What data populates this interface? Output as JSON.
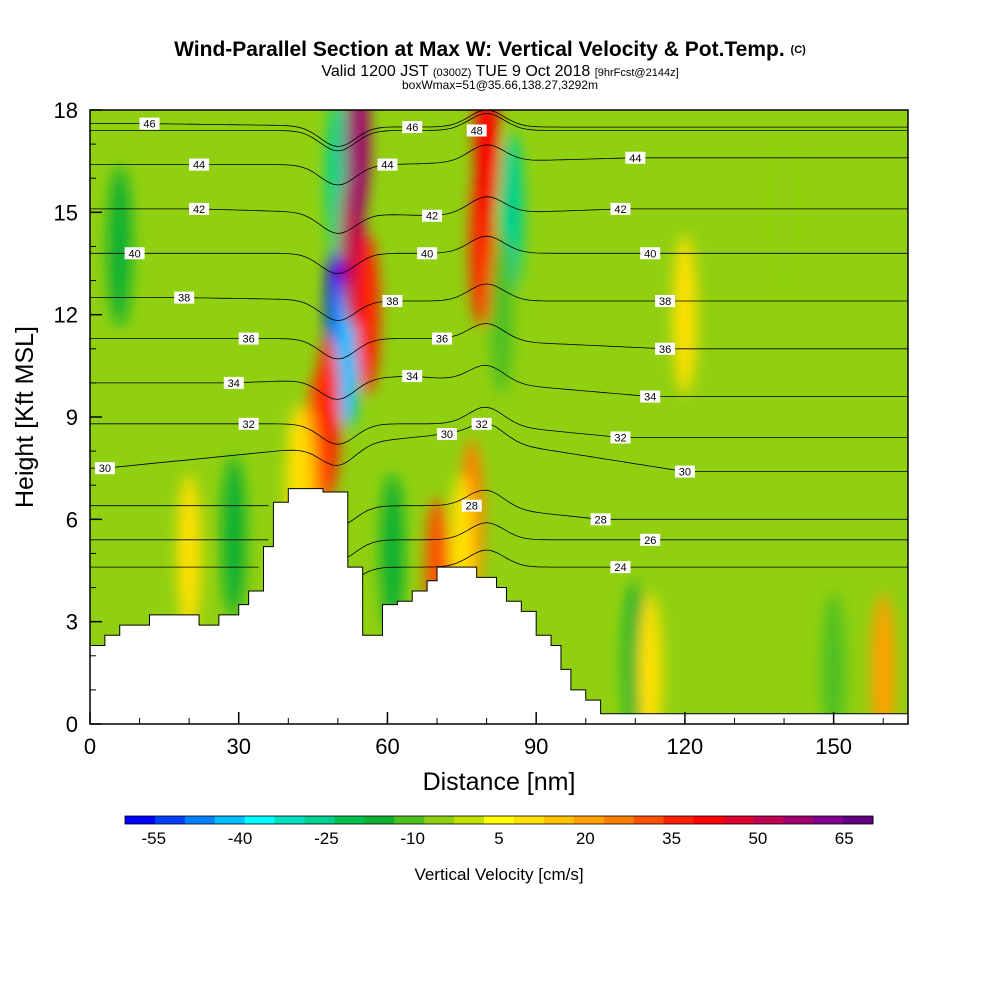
{
  "chart_data": {
    "type": "heatmap",
    "title": {
      "main": "Wind-Parallel Section at Max W: Vertical Velocity & Pot.Temp.",
      "copyright": "(C)",
      "valid_prefix": "Valid 1200 JST",
      "valid_utc": "(0300Z)",
      "valid_date": "TUE 9 Oct 2018",
      "forecast": "[9hrFcst@2144z]",
      "boxinfo": "boxWmax=51@35.66,138.27,3292m"
    },
    "xlabel": "Distance [nm]",
    "ylabel": "Height [Kft MSL]",
    "xlim": [
      0,
      165
    ],
    "ylim": [
      0,
      18
    ],
    "xticks": [
      0,
      30,
      60,
      90,
      120,
      150
    ],
    "yticks": [
      0,
      3,
      6,
      9,
      12,
      15,
      18
    ],
    "colorbar": {
      "label": "Vertical Velocity [cm/s]",
      "tick_values": [
        -55,
        -40,
        -25,
        -10,
        5,
        20,
        35,
        50,
        65
      ],
      "range": [
        -60,
        70
      ],
      "colors": [
        "#0000ff",
        "#0040ff",
        "#0080ff",
        "#00bfff",
        "#00ffff",
        "#00e0c0",
        "#00d090",
        "#00c050",
        "#10b030",
        "#50c020",
        "#90d010",
        "#c0e000",
        "#ffff00",
        "#ffe000",
        "#ffc000",
        "#ffa000",
        "#ff8000",
        "#ff5000",
        "#ff2000",
        "#ff0000",
        "#e00030",
        "#c00050",
        "#a00070",
        "#800090",
        "#600080"
      ]
    },
    "terrain_profile": [
      [
        0,
        2.3
      ],
      [
        3,
        2.3
      ],
      [
        3,
        2.6
      ],
      [
        6,
        2.6
      ],
      [
        6,
        2.9
      ],
      [
        12,
        2.9
      ],
      [
        12,
        3.2
      ],
      [
        22,
        3.2
      ],
      [
        22,
        2.9
      ],
      [
        26,
        2.9
      ],
      [
        26,
        3.2
      ],
      [
        30,
        3.2
      ],
      [
        30,
        3.5
      ],
      [
        32,
        3.5
      ],
      [
        32,
        3.9
      ],
      [
        35,
        3.9
      ],
      [
        35,
        5.2
      ],
      [
        37,
        5.2
      ],
      [
        37,
        6.5
      ],
      [
        40,
        6.5
      ],
      [
        40,
        6.9
      ],
      [
        47,
        6.9
      ],
      [
        47,
        6.8
      ],
      [
        52,
        6.8
      ],
      [
        52,
        4.6
      ],
      [
        55,
        4.6
      ],
      [
        55,
        2.6
      ],
      [
        59,
        2.6
      ],
      [
        59,
        3.5
      ],
      [
        62,
        3.5
      ],
      [
        62,
        3.6
      ],
      [
        65,
        3.6
      ],
      [
        65,
        3.9
      ],
      [
        68,
        3.9
      ],
      [
        68,
        4.2
      ],
      [
        70,
        4.2
      ],
      [
        70,
        4.6
      ],
      [
        78,
        4.6
      ],
      [
        78,
        4.3
      ],
      [
        82,
        4.3
      ],
      [
        82,
        4.0
      ],
      [
        84,
        4.0
      ],
      [
        84,
        3.6
      ],
      [
        87,
        3.6
      ],
      [
        87,
        3.3
      ],
      [
        90,
        3.3
      ],
      [
        90,
        2.6
      ],
      [
        93,
        2.6
      ],
      [
        93,
        2.3
      ],
      [
        95,
        2.3
      ],
      [
        95,
        1.6
      ],
      [
        97,
        1.6
      ],
      [
        97,
        1.0
      ],
      [
        100,
        1.0
      ],
      [
        100,
        0.7
      ],
      [
        103,
        0.7
      ],
      [
        103,
        0.3
      ],
      [
        165,
        0.3
      ]
    ],
    "wind_cells": [
      {
        "x": 50,
        "y": 12,
        "v": -55
      },
      {
        "x": 50,
        "y": 16,
        "v": -25
      },
      {
        "x": 52,
        "y": 11,
        "v": -40
      },
      {
        "x": 53,
        "y": 14,
        "v": 50
      },
      {
        "x": 54,
        "y": 17,
        "v": 55
      },
      {
        "x": 56,
        "y": 12,
        "v": 35
      },
      {
        "x": 46,
        "y": 8,
        "v": 30
      },
      {
        "x": 48,
        "y": 9,
        "v": 35
      },
      {
        "x": 44,
        "y": 7,
        "v": 20
      },
      {
        "x": 79,
        "y": 14,
        "v": 35
      },
      {
        "x": 80,
        "y": 17,
        "v": 40
      },
      {
        "x": 85,
        "y": 15,
        "v": -25
      },
      {
        "x": 83,
        "y": 12,
        "v": -10
      },
      {
        "x": 77,
        "y": 6,
        "v": 25
      },
      {
        "x": 75,
        "y": 5,
        "v": 10
      },
      {
        "x": 70,
        "y": 4.3,
        "v": 30
      },
      {
        "x": 42,
        "y": 7,
        "v": 10
      },
      {
        "x": 20,
        "y": 5,
        "v": 10
      },
      {
        "x": 29,
        "y": 5.5,
        "v": -15
      },
      {
        "x": 61,
        "y": 5,
        "v": -15
      },
      {
        "x": 6,
        "y": 14,
        "v": -15
      },
      {
        "x": 140,
        "y": 15,
        "v": -5
      },
      {
        "x": 110,
        "y": 1.8,
        "v": -15
      },
      {
        "x": 113,
        "y": 1.5,
        "v": 10
      },
      {
        "x": 150,
        "y": 1.5,
        "v": -10
      },
      {
        "x": 120,
        "y": 12,
        "v": 10
      },
      {
        "x": 160,
        "y": 1.5,
        "v": 20
      }
    ],
    "theta_contours": [
      {
        "value": 24,
        "x": 107,
        "y": 4.6
      },
      {
        "value": 26,
        "x": 113,
        "y": 5.4
      },
      {
        "value": 28,
        "x": 77,
        "y": 6.4
      },
      {
        "value": 28,
        "x": 103,
        "y": 6.0
      },
      {
        "value": 30,
        "x": 3,
        "y": 7.5
      },
      {
        "value": 30,
        "x": 72,
        "y": 8.5
      },
      {
        "value": 30,
        "x": 120,
        "y": 7.4
      },
      {
        "value": 32,
        "x": 32,
        "y": 8.8
      },
      {
        "value": 32,
        "x": 79,
        "y": 8.8
      },
      {
        "value": 32,
        "x": 107,
        "y": 8.4
      },
      {
        "value": 34,
        "x": 29,
        "y": 10.0
      },
      {
        "value": 34,
        "x": 65,
        "y": 10.2
      },
      {
        "value": 34,
        "x": 113,
        "y": 9.6
      },
      {
        "value": 36,
        "x": 32,
        "y": 11.3
      },
      {
        "value": 36,
        "x": 71,
        "y": 11.3
      },
      {
        "value": 36,
        "x": 116,
        "y": 11.0
      },
      {
        "value": 38,
        "x": 19,
        "y": 12.5
      },
      {
        "value": 38,
        "x": 61,
        "y": 12.4
      },
      {
        "value": 38,
        "x": 116,
        "y": 12.4
      },
      {
        "value": 40,
        "x": 9,
        "y": 13.8
      },
      {
        "value": 40,
        "x": 68,
        "y": 13.8
      },
      {
        "value": 40,
        "x": 113,
        "y": 13.8
      },
      {
        "value": 42,
        "x": 22,
        "y": 15.1
      },
      {
        "value": 42,
        "x": 69,
        "y": 14.9
      },
      {
        "value": 42,
        "x": 107,
        "y": 15.1
      },
      {
        "value": 44,
        "x": 22,
        "y": 16.4
      },
      {
        "value": 44,
        "x": 60,
        "y": 16.4
      },
      {
        "value": 44,
        "x": 110,
        "y": 16.6
      },
      {
        "value": 46,
        "x": 12,
        "y": 17.6
      },
      {
        "value": 46,
        "x": 65,
        "y": 17.5
      },
      {
        "value": 48,
        "x": 78,
        "y": 17.4
      }
    ]
  }
}
